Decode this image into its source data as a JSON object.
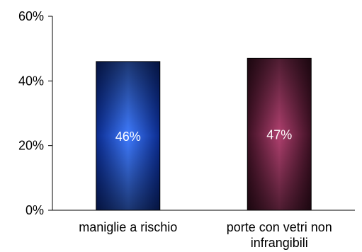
{
  "chart_data": {
    "type": "bar",
    "categories": [
      "maniglie  a rischio",
      "porte con vetri non infrangibili"
    ],
    "category_lines": [
      [
        "maniglie  a rischio"
      ],
      [
        "porte con vetri non",
        "infrangibili"
      ]
    ],
    "values": [
      46,
      47
    ],
    "data_labels": [
      "46%",
      "47%"
    ],
    "ylim": [
      0,
      60
    ],
    "yticks": [
      0,
      20,
      40,
      60
    ],
    "ytick_labels": [
      "0%",
      "20%",
      "40%",
      "60%"
    ],
    "grid": false,
    "legend": "none",
    "colors": {
      "bar1_center": "#3f7bff",
      "bar1_edge": "#0a2a8c",
      "bar2_center": "#b0406f",
      "bar2_edge": "#3c0f22",
      "axis": "#000000"
    }
  }
}
